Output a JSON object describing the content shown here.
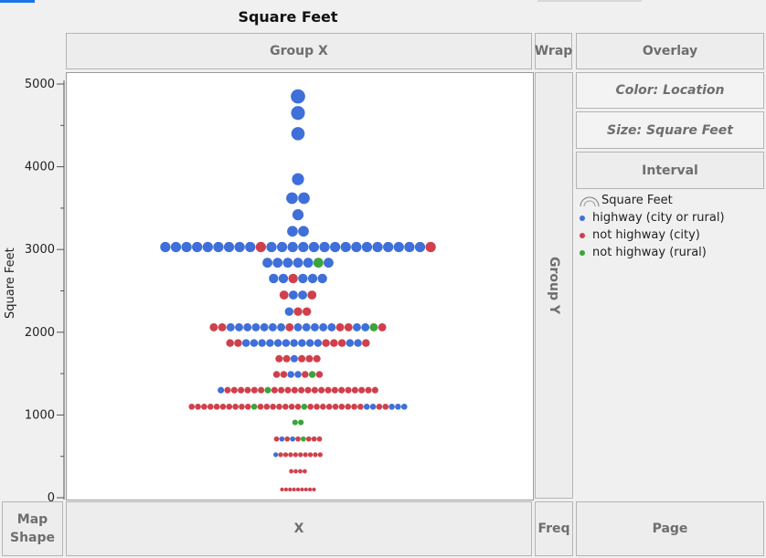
{
  "header": {
    "title": "Square Feet"
  },
  "zones": {
    "group_x": "Group X",
    "wrap": "Wrap",
    "overlay": "Overlay",
    "color": "Color: Location",
    "size": "Size: Square Feet",
    "interval": "Interval",
    "group_y": "Group Y",
    "map_shape": "Map\nShape",
    "x": "X",
    "freq": "Freq",
    "page": "Page"
  },
  "legend": {
    "title": "Square Feet",
    "items": [
      {
        "label": "highway (city or rural)",
        "color": "#3f6fd8"
      },
      {
        "label": "not highway (city)",
        "color": "#d0404c"
      },
      {
        "label": "not highway (rural)",
        "color": "#3aa53a"
      }
    ]
  },
  "chart_data": {
    "type": "scatter",
    "subtype": "beeswarm",
    "title": "Square Feet",
    "ylabel": "Square Feet",
    "xlabel": "",
    "ylim": [
      0,
      5000
    ],
    "yticks": [
      0,
      1000,
      2000,
      3000,
      4000,
      5000
    ],
    "grid": false,
    "size_by": "Square Feet",
    "color_by": "Location",
    "series_colors": {
      "H": "#3f6fd8",
      "C": "#d0404c",
      "R": "#3aa53a"
    },
    "rows": [
      {
        "y": 4850,
        "points": "H"
      },
      {
        "y": 4650,
        "points": "H"
      },
      {
        "y": 4400,
        "points": "H"
      },
      {
        "y": 3850,
        "points": "H"
      },
      {
        "y": 3620,
        "points": "HH"
      },
      {
        "y": 3420,
        "points": "H"
      },
      {
        "y": 3220,
        "points": "HH"
      },
      {
        "y": 3030,
        "points": "HHHHHHHHHCHHHHHHHHHHHHHHHC"
      },
      {
        "y": 2840,
        "points": "HHHHHRH"
      },
      {
        "y": 2650,
        "points": "HHCHHH"
      },
      {
        "y": 2450,
        "points": "CHHC"
      },
      {
        "y": 2250,
        "points": "HCC"
      },
      {
        "y": 2060,
        "points": "CCHHHHHHHCHHHHHCCHHRC"
      },
      {
        "y": 1870,
        "points": "CCHHHHHHHHHHCCCHHC"
      },
      {
        "y": 1680,
        "points": "CCHCCC"
      },
      {
        "y": 1490,
        "points": "CCHHCRC"
      },
      {
        "y": 1300,
        "points": "HCCCCCCRCCCCCCCCCCCCCCCC"
      },
      {
        "y": 1100,
        "points": "CCCCCCCCCCRCCCCCCCRCCCCCCCCCHHCCHHH"
      },
      {
        "y": 910,
        "points": "RR"
      },
      {
        "y": 710,
        "points": "CHCHCRCCC"
      },
      {
        "y": 520,
        "points": "HCCCCCCCCC"
      },
      {
        "y": 320,
        "points": "CCCC"
      },
      {
        "y": 100,
        "points": "CCCCCCCCC"
      }
    ]
  }
}
